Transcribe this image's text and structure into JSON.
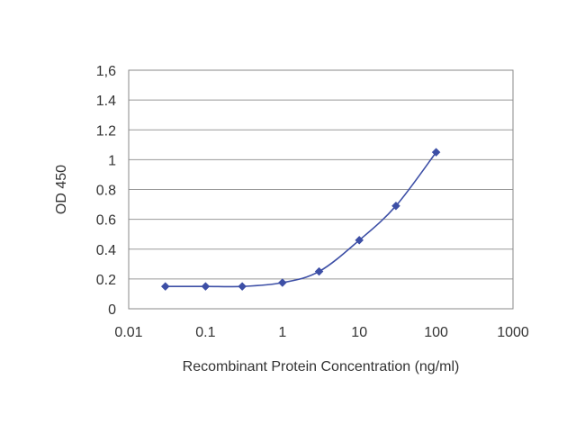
{
  "chart_data": {
    "type": "line",
    "xlabel": "Recombinant Protein Concentration (ng/ml)",
    "ylabel": "OD 450",
    "x_scale": "log",
    "xlim": [
      0.01,
      1000
    ],
    "ylim": [
      0,
      1.6
    ],
    "x_ticks": [
      0.01,
      0.1,
      1,
      10,
      100,
      1000
    ],
    "x_tick_labels": [
      "0.01",
      "0.1",
      "1",
      "10",
      "100",
      "1000"
    ],
    "y_ticks": [
      0,
      0.2,
      0.4,
      0.6,
      0.8,
      1,
      1.2,
      1.4,
      1.6
    ],
    "y_tick_labels": [
      "0",
      "0.2",
      "0.4",
      "0.6",
      "0.8",
      "1",
      "1.2",
      "1.4",
      "1,6"
    ],
    "grid": "horizontal",
    "legend": "none",
    "series": [
      {
        "x": [
          0.03,
          0.1,
          0.3,
          1,
          3,
          10,
          30,
          100
        ],
        "y": [
          0.15,
          0.15,
          0.15,
          0.175,
          0.25,
          0.46,
          0.69,
          1.05
        ],
        "color": "#3d4fa6",
        "marker": "diamond"
      }
    ]
  }
}
